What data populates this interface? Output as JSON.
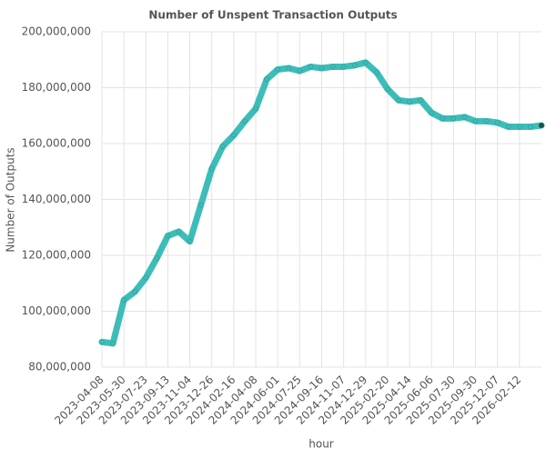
{
  "chart_data": {
    "type": "line",
    "title": "Number of Unspent Transaction Outputs",
    "xlabel": "hour",
    "ylabel": "Number of Outputs",
    "categories": [
      "2023-04-08",
      null,
      "2023-05-30",
      null,
      "2023-07-23",
      null,
      "2023-09-13",
      null,
      "2023-11-04",
      null,
      "2023-12-26",
      null,
      "2024-02-16",
      null,
      "2024-04-08",
      null,
      "2024-06-01",
      null,
      "2024-07-25",
      null,
      "2024-09-16",
      null,
      "2024-11-07",
      null,
      "2024-12-29",
      null,
      "2025-02-20",
      null,
      "2025-04-14",
      null,
      "2025-06-06",
      null,
      "2025-07-30",
      null,
      "2025-09-30",
      null,
      "2025-12-07",
      null,
      "2026-02-12",
      null,
      null
    ],
    "series": [
      {
        "name": "Number of Outputs",
        "color": "#3dbdb8",
        "values": [
          89000000,
          88500000,
          104000000,
          107000000,
          112000000,
          119000000,
          127000000,
          128500000,
          125000000,
          138000000,
          151000000,
          159000000,
          163000000,
          168000000,
          172500000,
          183000000,
          186500000,
          187000000,
          186000000,
          187500000,
          187000000,
          187500000,
          187500000,
          188000000,
          189000000,
          185500000,
          179500000,
          175500000,
          175000000,
          175500000,
          171000000,
          169000000,
          169000000,
          169500000,
          168000000,
          168000000,
          167500000,
          166000000,
          166000000,
          166000000,
          166500000
        ]
      }
    ],
    "ylim": [
      80000000,
      200000000
    ],
    "yticks": [
      {
        "value": 80000000,
        "label": "80,000,000"
      },
      {
        "value": 100000000,
        "label": "100,000,000"
      },
      {
        "value": 120000000,
        "label": "120,000,000"
      },
      {
        "value": 140000000,
        "label": "140,000,000"
      },
      {
        "value": 160000000,
        "label": "160,000,000"
      },
      {
        "value": 180000000,
        "label": "180,000,000"
      },
      {
        "value": 200000000,
        "label": "200,000,000"
      }
    ],
    "grid": true
  }
}
